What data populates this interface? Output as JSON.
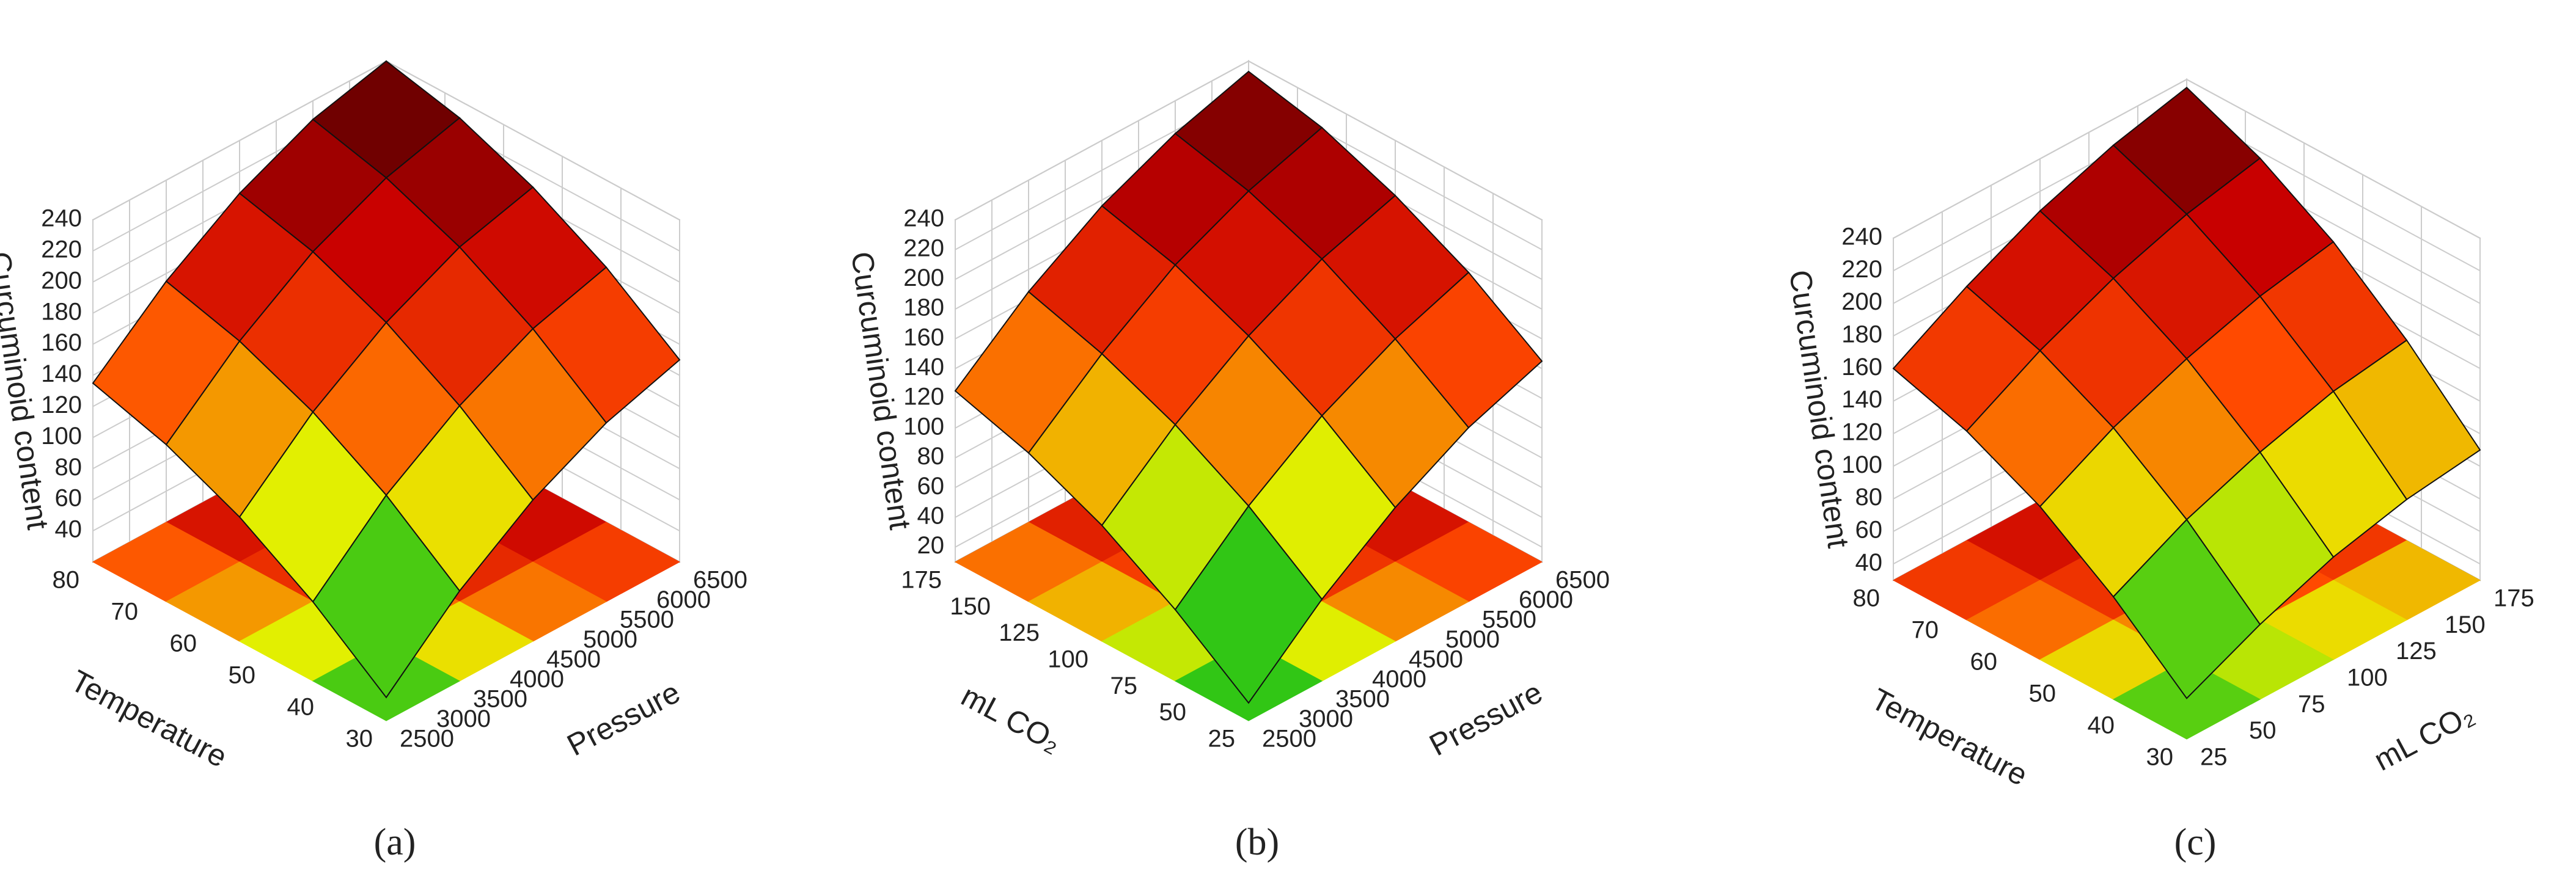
{
  "chart_data": [
    {
      "type": "surface3d",
      "label": "(a)",
      "xlabel": "Pressure",
      "ylabel": "Temperature",
      "zlabel": "Curcuminoid content",
      "xlim": [
        2500,
        6500
      ],
      "xticks": [
        2500,
        3000,
        3500,
        4000,
        4500,
        5000,
        5500,
        6000,
        6500
      ],
      "ylim": [
        30,
        80
      ],
      "yticks": [
        30,
        40,
        50,
        60,
        70,
        80
      ],
      "zlim": [
        20,
        240
      ],
      "zticks": [
        40,
        60,
        80,
        100,
        120,
        140,
        160,
        180,
        200,
        220,
        240
      ],
      "colormap": [
        "#0a4d0a",
        "#18c018",
        "#e8f000",
        "#ff4a00",
        "#c80000",
        "#500000"
      ],
      "x": [
        2500,
        3500,
        4500,
        5500,
        6500
      ],
      "y": [
        30,
        42.5,
        55,
        67.5,
        80
      ],
      "z": [
        [
          35,
          78,
          111,
          135,
          150
        ],
        [
          71,
          114,
          146,
          170,
          184
        ],
        [
          100,
          142,
          174,
          197,
          210
        ],
        [
          121,
          162,
          194,
          216,
          229
        ],
        [
          135,
          175,
          206,
          228,
          240
        ]
      ]
    },
    {
      "type": "surface3d",
      "label": "(b)",
      "xlabel": "Pressure",
      "ylabel": "mL CO₂",
      "zlabel": "Curcuminoid content",
      "xlim": [
        2500,
        6500
      ],
      "xticks": [
        2500,
        3000,
        3500,
        4000,
        4500,
        5000,
        5500,
        6000,
        6500
      ],
      "ylim": [
        25,
        175
      ],
      "yticks": [
        25,
        50,
        75,
        100,
        125,
        150,
        175
      ],
      "zlim": [
        10,
        240
      ],
      "zticks": [
        20,
        40,
        60,
        80,
        100,
        120,
        140,
        160,
        180,
        200,
        220,
        240
      ],
      "colormap": [
        "#0a4d0a",
        "#18c018",
        "#e8f000",
        "#ff4a00",
        "#c80000",
        "#500000"
      ],
      "x": [
        2500,
        3500,
        4500,
        5500,
        6500
      ],
      "y": [
        25,
        62.5,
        100,
        137.5,
        175
      ],
      "z": [
        [
          22,
          65,
          100,
          127,
          145
        ],
        [
          58,
          101,
          135,
          160,
          178
        ],
        [
          88,
          129,
          162,
          187,
          203
        ],
        [
          110,
          150,
          183,
          206,
          222
        ],
        [
          125,
          165,
          196,
          218,
          233
        ]
      ]
    },
    {
      "type": "surface3d",
      "label": "(c)",
      "xlabel": "mL CO₂",
      "ylabel": "Temperature",
      "zlabel": "Curcuminoid content",
      "xlim": [
        25,
        175
      ],
      "xticks": [
        25,
        50,
        75,
        100,
        125,
        150,
        175
      ],
      "ylim": [
        30,
        80
      ],
      "yticks": [
        30,
        40,
        50,
        60,
        70,
        80
      ],
      "zlim": [
        30,
        240
      ],
      "zticks": [
        40,
        60,
        80,
        100,
        120,
        140,
        160,
        180,
        200,
        220,
        240
      ],
      "colormap": [
        "#0a4d0a",
        "#18c018",
        "#e8f000",
        "#ff4a00",
        "#c80000",
        "#500000"
      ],
      "x": [
        25,
        62.5,
        100,
        137.5,
        175
      ],
      "y": [
        30,
        42.5,
        55,
        67.5,
        80
      ],
      "z": [
        [
          55,
          76,
          93,
          104,
          110
        ],
        [
          93,
          116,
          133,
          146,
          153
        ],
        [
          124,
          148,
          166,
          180,
          189
        ],
        [
          146,
          171,
          191,
          206,
          216
        ],
        [
          160,
          186,
          208,
          224,
          235
        ]
      ]
    }
  ]
}
